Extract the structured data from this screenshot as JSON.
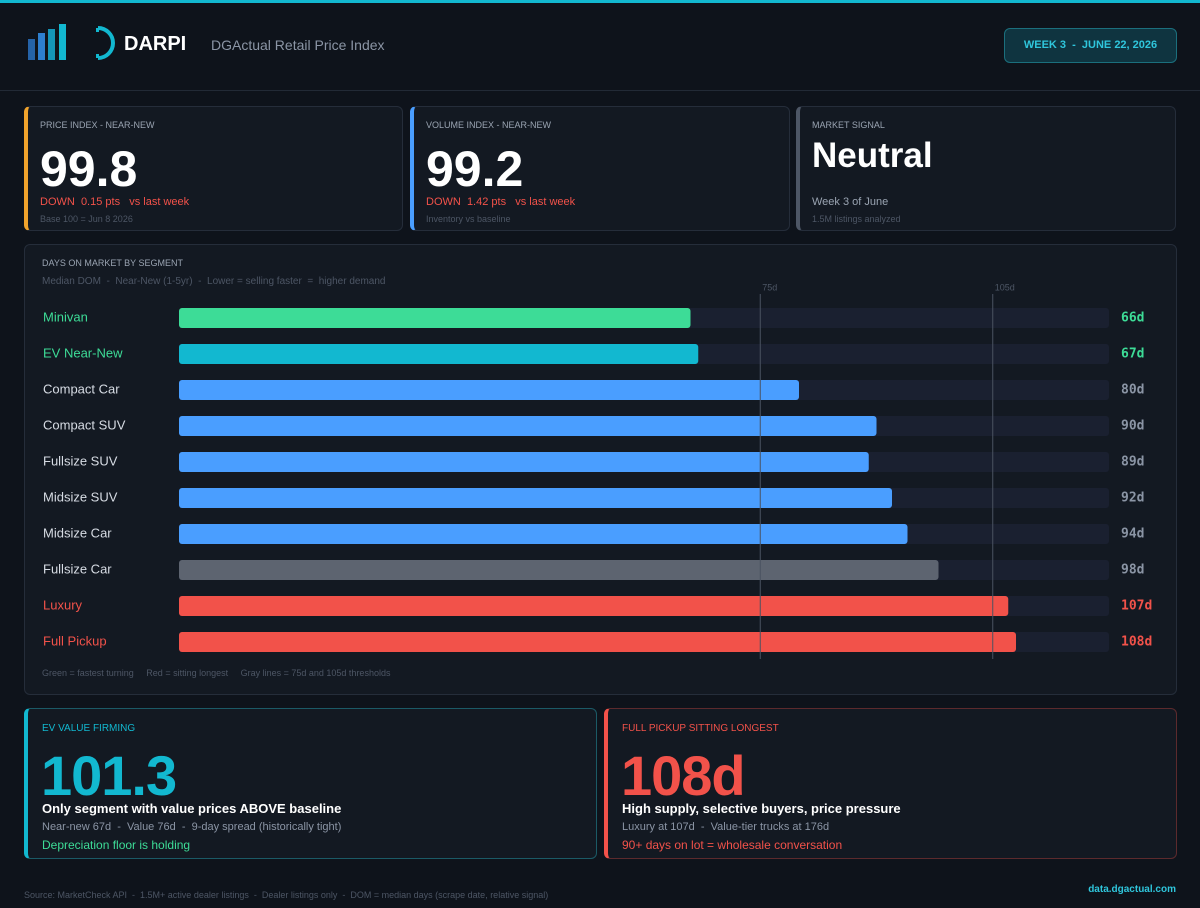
{
  "header": {
    "brand": "DARPI",
    "subtitle": "DGActual Retail Price Index",
    "badge": "WEEK 3  -  JUNE 22, 2026"
  },
  "kpis": [
    {
      "label": "PRICE INDEX - NEAR-NEW",
      "value": "99.8",
      "delta": "DOWN  0.15 pts   vs last week",
      "note": "Base 100 = Jun 8 2026"
    },
    {
      "label": "VOLUME INDEX - NEAR-NEW",
      "value": "99.2",
      "delta": "DOWN  1.42 pts   vs last week",
      "note": "Inventory vs baseline"
    },
    {
      "label": "MARKET SIGNAL",
      "value": "Neutral",
      "delta": "Week 3 of June",
      "note": "1.5M listings analyzed"
    }
  ],
  "chart_data": {
    "type": "bar",
    "orientation": "horizontal",
    "title": "DAYS ON MARKET BY SEGMENT",
    "subtitle": "Median DOM  -  Near-New (1-5yr)  -  Lower = selling faster  =  higher demand",
    "note": "Green = fastest turning     Red = sitting longest     Gray lines = 75d and 105d thresholds",
    "categories": [
      "Minivan",
      "EV Near-New",
      "Compact Car",
      "Compact SUV",
      "Fullsize SUV",
      "Midsize SUV",
      "Midsize Car",
      "Fullsize Car",
      "Luxury",
      "Full Pickup"
    ],
    "values": [
      66,
      67,
      80,
      90,
      89,
      92,
      94,
      98,
      107,
      108
    ],
    "value_labels": [
      "66d",
      "67d",
      "80d",
      "90d",
      "89d",
      "92d",
      "94d",
      "98d",
      "107d",
      "108d"
    ],
    "colors": [
      "#3ddc97",
      "#12b8d0",
      "#4a9eff",
      "#4a9eff",
      "#4a9eff",
      "#4a9eff",
      "#4a9eff",
      "#5d6470",
      "#f2524a",
      "#f2524a"
    ],
    "label_colors": [
      "#3ddc97",
      "#3ddc97",
      "#d7dce4",
      "#d7dce4",
      "#d7dce4",
      "#d7dce4",
      "#d7dce4",
      "#d7dce4",
      "#f2524a",
      "#f2524a"
    ],
    "value_label_colors": [
      "#3ddc97",
      "#3ddc97",
      "#8b95a5",
      "#8b95a5",
      "#8b95a5",
      "#8b95a5",
      "#8b95a5",
      "#8b95a5",
      "#f2524a",
      "#f2524a"
    ],
    "xlim": [
      0,
      120
    ],
    "xticks": [
      {
        "value": 75,
        "label": "75d"
      },
      {
        "value": 105,
        "label": "105d"
      }
    ]
  },
  "highlights": [
    {
      "label": "EV VALUE FIRMING",
      "value": "101.3",
      "headline": "Only segment with value prices ABOVE baseline",
      "detail": "Near-new 67d  -  Value 76d  -  9-day spread (historically tight)",
      "callout": "Depreciation floor is holding"
    },
    {
      "label": "FULL PICKUP SITTING LONGEST",
      "value": "108d",
      "headline": "High supply, selective buyers, price pressure",
      "detail": "Luxury at 107d  -  Value-tier trucks at 176d",
      "callout": "90+ days on lot = wholesale conversation"
    }
  ],
  "footer": {
    "source": "Source: MarketCheck API  -  1.5M+ active dealer listings  -  Dealer listings only  -  DOM = median days (scrape date, relative signal)",
    "link": "data.dgactual.com"
  }
}
